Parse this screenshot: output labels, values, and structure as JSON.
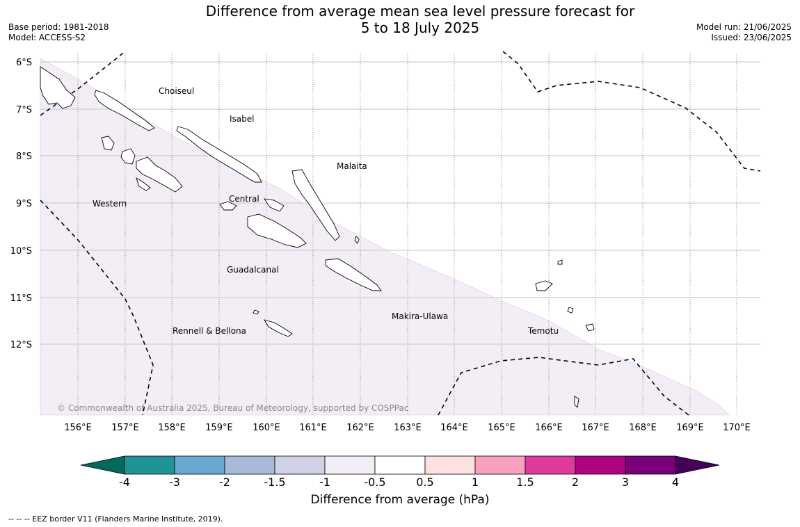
{
  "header": {
    "title_line1": "Difference from average mean sea level pressure forecast for",
    "title_line2": "5 to 18 July 2025",
    "base_period": "Base period: 1981-2018",
    "model": "Model: ACCESS-S2",
    "model_run": "Model run: 21/06/2025",
    "issued": "Issued: 23/06/2025"
  },
  "map": {
    "lat_labels": [
      "6°S",
      "7°S",
      "8°S",
      "9°S",
      "10°S",
      "11°S",
      "12°S"
    ],
    "lon_labels": [
      "156°E",
      "157°E",
      "158°E",
      "159°E",
      "160°E",
      "161°E",
      "162°E",
      "163°E",
      "164°E",
      "165°E",
      "166°E",
      "167°E",
      "168°E",
      "169°E",
      "170°E"
    ],
    "regions": [
      {
        "name": "Choiseul"
      },
      {
        "name": "Isabel"
      },
      {
        "name": "Malaita"
      },
      {
        "name": "Western"
      },
      {
        "name": "Central"
      },
      {
        "name": "Guadalcanal"
      },
      {
        "name": "Makira-Ulawa"
      },
      {
        "name": "Rennell & Bellona"
      },
      {
        "name": "Temotu"
      }
    ],
    "copyright": "© Commonwealth of Australia 2025, Bureau of Meteorology, supported by COSPPac",
    "shaded_category": "-1 to -0.5"
  },
  "colorbar": {
    "title": "Difference from average (hPa)",
    "ticks": [
      "-4",
      "-3",
      "-2",
      "-1.5",
      "-1",
      "-0.5",
      "0.5",
      "1",
      "1.5",
      "2",
      "3",
      "4"
    ],
    "under_color": "#006a5c",
    "over_color": "#45005a",
    "colors": [
      "#1f9497",
      "#68a9d3",
      "#a7bad9",
      "#d0d1e4",
      "#f3edf6",
      "#ffffff",
      "#fde0e0",
      "#f8a0bd",
      "#df3b9c",
      "#b0037f",
      "#7a017a"
    ]
  },
  "footer": {
    "legend_text": "--  --  -- EEZ border V11 (Flanders Marine Institute, 2019)."
  }
}
